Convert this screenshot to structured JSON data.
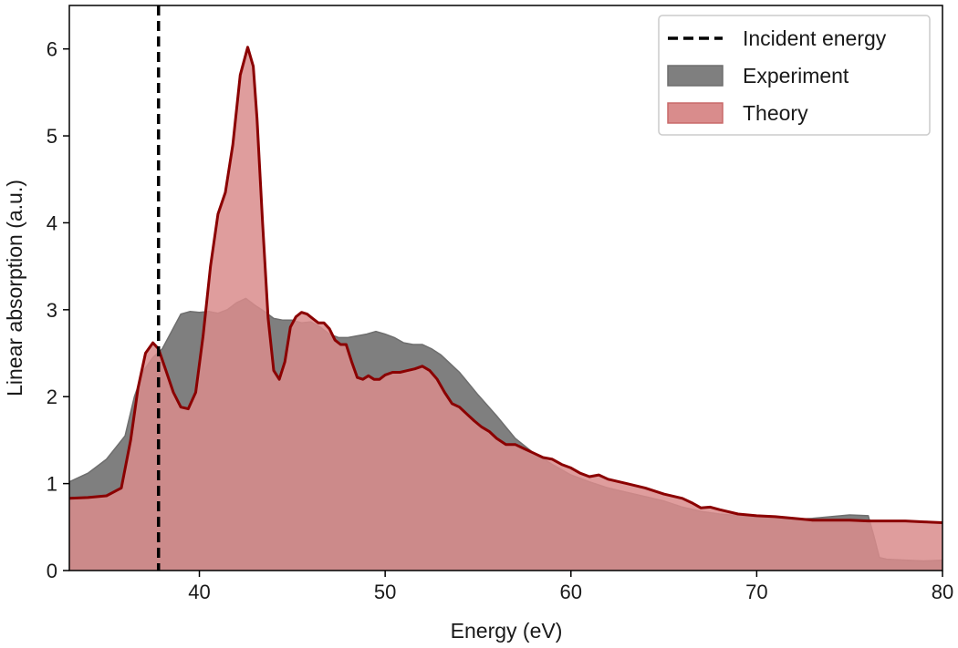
{
  "chart_data": {
    "type": "area",
    "xlabel": "Energy (eV)",
    "ylabel": "Linear absorption (a.u.)",
    "xlim": [
      33,
      80
    ],
    "ylim": [
      0,
      6.5
    ],
    "xticks": [
      40,
      50,
      60,
      70,
      80
    ],
    "yticks": [
      0,
      1,
      2,
      3,
      4,
      5,
      6
    ],
    "grid": false,
    "legend_position": "top-right",
    "incident_energy": 37.8,
    "legend": [
      {
        "label": "Incident energy",
        "kind": "dashed-line",
        "color": "#000000"
      },
      {
        "label": "Experiment",
        "kind": "filled-area",
        "color": "#7f7f7f"
      },
      {
        "label": "Theory",
        "kind": "filled-area",
        "color": "#d98c8c",
        "edge": "#8b0000"
      }
    ],
    "series": [
      {
        "name": "Experiment",
        "color": "#7f7f7f",
        "x": [
          33,
          34,
          35,
          36,
          36.5,
          37,
          37.5,
          38,
          38.5,
          39,
          39.5,
          40,
          40.5,
          41,
          41.5,
          42,
          42.5,
          43,
          43.5,
          44,
          44.5,
          45,
          45.5,
          46,
          46.5,
          47,
          47.5,
          48,
          48.5,
          49,
          49.5,
          50,
          50.5,
          51,
          51.5,
          52,
          52.5,
          53,
          54,
          55,
          56,
          57,
          58,
          59,
          60,
          61,
          62,
          63,
          64,
          65,
          66,
          67,
          68,
          69,
          70,
          71,
          72,
          73,
          74,
          75,
          76,
          76.3,
          76.6,
          77,
          78,
          79,
          80
        ],
        "y": [
          1.02,
          1.12,
          1.28,
          1.55,
          2.0,
          2.3,
          2.45,
          2.55,
          2.75,
          2.95,
          2.98,
          2.97,
          2.98,
          2.96,
          3.0,
          3.08,
          3.13,
          3.05,
          2.98,
          2.9,
          2.88,
          2.88,
          2.85,
          2.86,
          2.8,
          2.72,
          2.68,
          2.68,
          2.7,
          2.72,
          2.75,
          2.72,
          2.68,
          2.62,
          2.6,
          2.6,
          2.55,
          2.48,
          2.28,
          2.02,
          1.78,
          1.52,
          1.35,
          1.22,
          1.1,
          1.02,
          0.95,
          0.9,
          0.85,
          0.8,
          0.73,
          0.68,
          0.65,
          0.63,
          0.61,
          0.6,
          0.59,
          0.6,
          0.62,
          0.64,
          0.63,
          0.4,
          0.15,
          0.13,
          0.12,
          0.11,
          0.12
        ]
      },
      {
        "name": "Theory",
        "color": "#d98c8c",
        "edge": "#8b0000",
        "x": [
          33,
          34,
          35,
          35.8,
          36.3,
          36.7,
          37.1,
          37.5,
          37.8,
          38.2,
          38.6,
          39.0,
          39.4,
          39.8,
          40.2,
          40.6,
          41.0,
          41.4,
          41.8,
          42.2,
          42.6,
          42.9,
          43.1,
          43.4,
          43.7,
          44.0,
          44.3,
          44.6,
          44.9,
          45.2,
          45.5,
          45.8,
          46.1,
          46.4,
          46.7,
          47.0,
          47.3,
          47.6,
          47.9,
          48.2,
          48.5,
          48.8,
          49.1,
          49.4,
          49.7,
          50.0,
          50.4,
          50.8,
          51.2,
          51.6,
          52.0,
          52.4,
          52.8,
          53.2,
          53.6,
          54.0,
          54.4,
          54.8,
          55.2,
          55.6,
          56.0,
          56.5,
          57.0,
          57.5,
          58.0,
          58.5,
          59.0,
          59.5,
          60.0,
          60.5,
          61.0,
          61.5,
          62.0,
          63.0,
          64.0,
          65.0,
          66.0,
          66.5,
          67.0,
          67.5,
          68.0,
          69.0,
          70.0,
          71.0,
          72.0,
          73.0,
          74.0,
          75.0,
          76.0,
          77.0,
          78.0,
          79.0,
          80.0
        ],
        "y": [
          0.83,
          0.84,
          0.86,
          0.95,
          1.5,
          2.1,
          2.5,
          2.62,
          2.55,
          2.3,
          2.05,
          1.88,
          1.86,
          2.05,
          2.7,
          3.5,
          4.1,
          4.35,
          4.9,
          5.7,
          6.02,
          5.8,
          5.2,
          4.0,
          2.9,
          2.3,
          2.2,
          2.4,
          2.8,
          2.92,
          2.97,
          2.95,
          2.9,
          2.85,
          2.85,
          2.78,
          2.65,
          2.6,
          2.6,
          2.4,
          2.22,
          2.2,
          2.24,
          2.2,
          2.2,
          2.25,
          2.28,
          2.28,
          2.3,
          2.32,
          2.35,
          2.3,
          2.2,
          2.05,
          1.92,
          1.88,
          1.8,
          1.72,
          1.65,
          1.6,
          1.52,
          1.45,
          1.45,
          1.4,
          1.35,
          1.3,
          1.28,
          1.22,
          1.18,
          1.12,
          1.08,
          1.1,
          1.05,
          1.0,
          0.95,
          0.88,
          0.83,
          0.78,
          0.72,
          0.73,
          0.7,
          0.65,
          0.63,
          0.62,
          0.6,
          0.58,
          0.58,
          0.58,
          0.57,
          0.57,
          0.57,
          0.56,
          0.55
        ]
      }
    ]
  }
}
